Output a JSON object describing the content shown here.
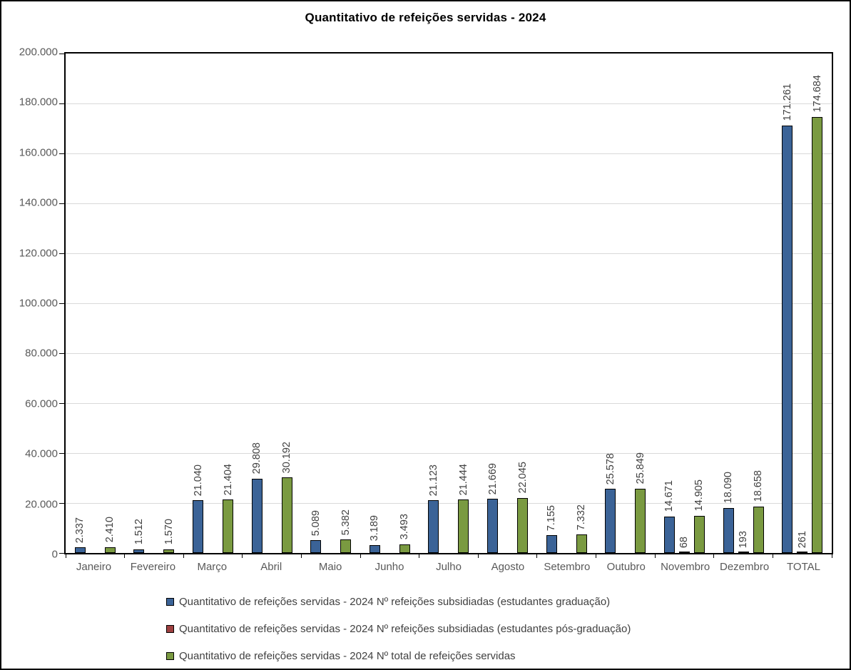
{
  "title": "Quantitativo de refeições servidas - 2024",
  "colors": {
    "series_graduacao": "#3B6397",
    "series_pos_graduacao": "#9E4040",
    "series_total": "#7A9A41",
    "bar_border": "#000000",
    "gridline": "#D9D9D9",
    "axis_text": "#595959",
    "value_label_text": "#404040",
    "frame_border": "#000000"
  },
  "chart_data": {
    "type": "bar",
    "title": "Quantitativo de refeições servidas - 2024",
    "xlabel": "",
    "ylabel": "",
    "grid": true,
    "legend_position": "bottom-left",
    "ylim": [
      0,
      200000
    ],
    "ytick_step": 20000,
    "ytick_labels": [
      "0",
      "20.000",
      "40.000",
      "60.000",
      "80.000",
      "100.000",
      "120.000",
      "140.000",
      "160.000",
      "180.000",
      "200.000"
    ],
    "categories": [
      "Janeiro",
      "Fevereiro",
      "Março",
      "Abril",
      "Maio",
      "Junho",
      "Julho",
      "Agosto",
      "Setembro",
      "Outubro",
      "Novembro",
      "Dezembro",
      "TOTAL"
    ],
    "series": [
      {
        "name": "Quantitativo de refeições servidas - 2024 Nº refeições subsidiadas (estudantes graduação)",
        "key": "graduacao",
        "color": "#3B6397",
        "values": [
          2337,
          1512,
          21040,
          29808,
          5089,
          3189,
          21123,
          21669,
          7155,
          25578,
          14671,
          18090,
          171261
        ],
        "labels": [
          "2.337",
          "1.512",
          "21.040",
          "29.808",
          "5.089",
          "3.189",
          "21.123",
          "21.669",
          "7.155",
          "25.578",
          "14.671",
          "18.090",
          "171.261"
        ]
      },
      {
        "name": "Quantitativo de refeições servidas - 2024 Nº refeições subsidiadas (estudantes pós-graduação)",
        "key": "pos-graduacao",
        "color": "#9E4040",
        "values": [
          null,
          null,
          null,
          null,
          null,
          null,
          null,
          null,
          null,
          null,
          68,
          193,
          261
        ],
        "labels": [
          null,
          null,
          null,
          null,
          null,
          null,
          null,
          null,
          null,
          null,
          "68",
          "193",
          "261"
        ]
      },
      {
        "name": "Quantitativo de refeições servidas - 2024 Nº total de refeições servidas",
        "key": "total",
        "color": "#7A9A41",
        "values": [
          2410,
          1570,
          21404,
          30192,
          5382,
          3493,
          21444,
          22045,
          7332,
          25849,
          14905,
          18658,
          174684
        ],
        "labels": [
          "2.410",
          "1.570",
          "21.404",
          "30.192",
          "5.382",
          "3.493",
          "21.444",
          "22.045",
          "7.332",
          "25.849",
          "14.905",
          "18.658",
          "174.684"
        ]
      }
    ]
  }
}
